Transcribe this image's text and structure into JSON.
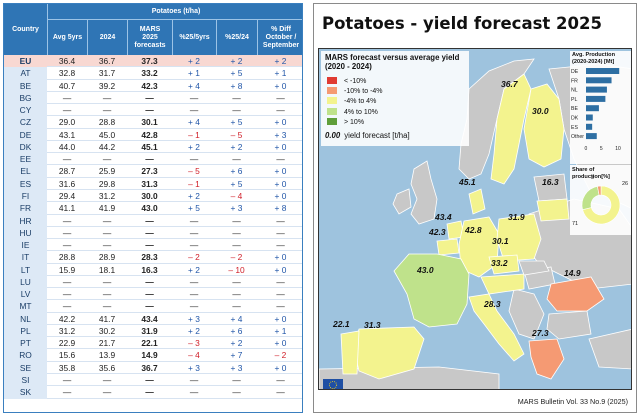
{
  "table": {
    "header": {
      "country": "Country",
      "group": "Potatoes (t/ha)",
      "avg": "Avg 5yrs",
      "y2024": "2024",
      "mars": "MARS 2025 forecasts",
      "d5": "%25/5yrs",
      "d24": "%25/24",
      "dos": "% Diff October / September"
    },
    "rows": [
      {
        "c": "EU",
        "avg": "36.4",
        "y24": "36.7",
        "mars": "37.3",
        "d5": "+ 2",
        "d24": "+ 2",
        "dos": "+ 2",
        "eu": true
      },
      {
        "c": "AT",
        "avg": "32.8",
        "y24": "31.7",
        "mars": "33.2",
        "d5": "+ 1",
        "d24": "+ 5",
        "dos": "+ 1"
      },
      {
        "c": "BE",
        "avg": "40.7",
        "y24": "39.2",
        "mars": "42.3",
        "d5": "+ 4",
        "d24": "+ 8",
        "dos": "+ 0"
      },
      {
        "c": "BG",
        "avg": "—",
        "y24": "—",
        "mars": "—",
        "d5": "—",
        "d24": "—",
        "dos": "—"
      },
      {
        "c": "CY",
        "avg": "—",
        "y24": "—",
        "mars": "—",
        "d5": "—",
        "d24": "—",
        "dos": "—"
      },
      {
        "c": "CZ",
        "avg": "29.0",
        "y24": "28.8",
        "mars": "30.1",
        "d5": "+ 4",
        "d24": "+ 5",
        "dos": "+ 0"
      },
      {
        "c": "DE",
        "avg": "43.1",
        "y24": "45.0",
        "mars": "42.8",
        "d5": "– 1",
        "d24": "– 5",
        "dos": "+ 3"
      },
      {
        "c": "DK",
        "avg": "44.0",
        "y24": "44.2",
        "mars": "45.1",
        "d5": "+ 2",
        "d24": "+ 2",
        "dos": "+ 0"
      },
      {
        "c": "EE",
        "avg": "—",
        "y24": "—",
        "mars": "—",
        "d5": "—",
        "d24": "—",
        "dos": "—"
      },
      {
        "c": "EL",
        "avg": "28.7",
        "y24": "25.9",
        "mars": "27.3",
        "d5": "– 5",
        "d24": "+ 6",
        "dos": "+ 0"
      },
      {
        "c": "ES",
        "avg": "31.6",
        "y24": "29.8",
        "mars": "31.3",
        "d5": "– 1",
        "d24": "+ 5",
        "dos": "+ 0"
      },
      {
        "c": "FI",
        "avg": "29.4",
        "y24": "31.2",
        "mars": "30.0",
        "d5": "+ 2",
        "d24": "– 4",
        "dos": "+ 0"
      },
      {
        "c": "FR",
        "avg": "41.1",
        "y24": "41.9",
        "mars": "43.0",
        "d5": "+ 5",
        "d24": "+ 3",
        "dos": "+ 8"
      },
      {
        "c": "HR",
        "avg": "—",
        "y24": "—",
        "mars": "—",
        "d5": "—",
        "d24": "—",
        "dos": "—"
      },
      {
        "c": "HU",
        "avg": "—",
        "y24": "—",
        "mars": "—",
        "d5": "—",
        "d24": "—",
        "dos": "—"
      },
      {
        "c": "IE",
        "avg": "—",
        "y24": "—",
        "mars": "—",
        "d5": "—",
        "d24": "—",
        "dos": "—"
      },
      {
        "c": "IT",
        "avg": "28.8",
        "y24": "28.9",
        "mars": "28.3",
        "d5": "– 2",
        "d24": "– 2",
        "dos": "+ 0"
      },
      {
        "c": "LT",
        "avg": "15.9",
        "y24": "18.1",
        "mars": "16.3",
        "d5": "+ 2",
        "d24": "– 10",
        "dos": "+ 0"
      },
      {
        "c": "LU",
        "avg": "—",
        "y24": "—",
        "mars": "—",
        "d5": "—",
        "d24": "—",
        "dos": "—"
      },
      {
        "c": "LV",
        "avg": "—",
        "y24": "—",
        "mars": "—",
        "d5": "—",
        "d24": "—",
        "dos": "—"
      },
      {
        "c": "MT",
        "avg": "—",
        "y24": "—",
        "mars": "—",
        "d5": "—",
        "d24": "—",
        "dos": "—"
      },
      {
        "c": "NL",
        "avg": "42.2",
        "y24": "41.7",
        "mars": "43.4",
        "d5": "+ 3",
        "d24": "+ 4",
        "dos": "+ 0"
      },
      {
        "c": "PL",
        "avg": "31.2",
        "y24": "30.2",
        "mars": "31.9",
        "d5": "+ 2",
        "d24": "+ 6",
        "dos": "+ 1"
      },
      {
        "c": "PT",
        "avg": "22.9",
        "y24": "21.7",
        "mars": "22.1",
        "d5": "– 3",
        "d24": "+ 2",
        "dos": "+ 0"
      },
      {
        "c": "RO",
        "avg": "15.6",
        "y24": "13.9",
        "mars": "14.9",
        "d5": "– 4",
        "d24": "+ 7",
        "dos": "– 2"
      },
      {
        "c": "SE",
        "avg": "35.8",
        "y24": "35.6",
        "mars": "36.7",
        "d5": "+ 3",
        "d24": "+ 3",
        "dos": "+ 0"
      },
      {
        "c": "SI",
        "avg": "—",
        "y24": "—",
        "mars": "—",
        "d5": "—",
        "d24": "—",
        "dos": "—"
      },
      {
        "c": "SK",
        "avg": "—",
        "y24": "—",
        "mars": "—",
        "d5": "—",
        "d24": "—",
        "dos": "—"
      }
    ]
  },
  "map": {
    "title": "Potatoes - yield forecast 2025",
    "legend": {
      "title": "MARS forecast versus average yield (2020 - 2024)",
      "items": [
        {
          "label": "< -10%",
          "color": "#e03b32"
        },
        {
          "label": "-10% to -4%",
          "color": "#f59a73"
        },
        {
          "label": "-4% to 4%",
          "color": "#f3f38e"
        },
        {
          "label": "4% to 10%",
          "color": "#bfe28b"
        },
        {
          "label": "> 10%",
          "color": "#5f9e3a"
        }
      ],
      "forecast_value": "0.00",
      "forecast_label": "yield forecast [t/ha]"
    },
    "labels": {
      "se": "36.7",
      "fi": "30.0",
      "lt": "16.3",
      "dk": "45.1",
      "nl": "43.4",
      "be": "42.3",
      "de": "42.8",
      "pl": "31.9",
      "cz": "30.1",
      "at": "33.2",
      "fr": "43.0",
      "ro": "14.9",
      "it": "28.3",
      "pt": "22.1",
      "es": "31.3",
      "el": "27.3"
    },
    "inset_bar": {
      "title": "Avg. Production (2020-2024) [Mt]",
      "categories": [
        "DE",
        "FR",
        "NL",
        "PL",
        "BE",
        "DK",
        "ES",
        "Other"
      ],
      "values": [
        10.8,
        8.3,
        6.8,
        6.3,
        4.2,
        2.2,
        2.0,
        3.5
      ],
      "ticks": [
        "0",
        "5",
        "10"
      ]
    },
    "inset_pie": {
      "title": "Share of production[%]",
      "slices": [
        {
          "label": "71",
          "value": 71,
          "color": "#f3f38e"
        },
        {
          "label": "26",
          "value": 26,
          "color": "#bfe28b"
        },
        {
          "label": "3",
          "value": 3,
          "color": "#f59a73"
        }
      ]
    },
    "footer": "MARS Bulletin Vol. 33 No.9 (2025)"
  }
}
